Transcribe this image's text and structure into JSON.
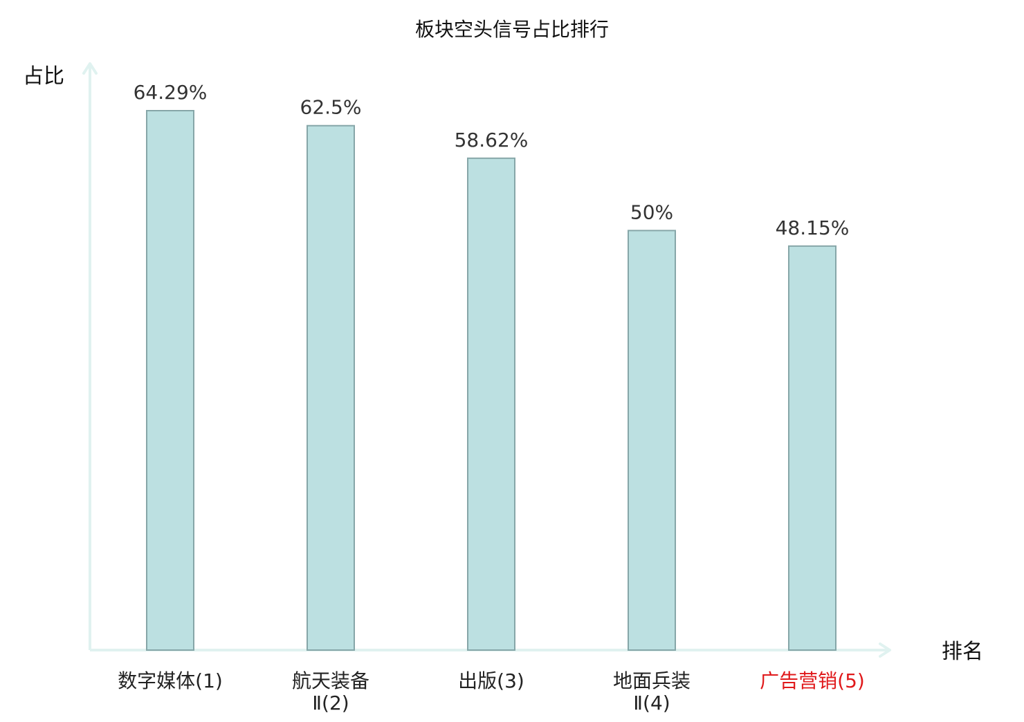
{
  "chart_data": {
    "type": "bar",
    "title": "板块空头信号占比排行",
    "xlabel": "排名",
    "ylabel": "占比",
    "categories": [
      {
        "name_lines": [
          "数字媒体"
        ],
        "rank": "(1)",
        "highlight": false
      },
      {
        "name_lines": [
          "航天装备",
          "Ⅱ"
        ],
        "rank": "(2)",
        "highlight": false
      },
      {
        "name_lines": [
          "出版"
        ],
        "rank": "(3)",
        "highlight": false
      },
      {
        "name_lines": [
          "地面兵装",
          "Ⅱ"
        ],
        "rank": "(4)",
        "highlight": false
      },
      {
        "name_lines": [
          "广告营销"
        ],
        "rank": "(5)",
        "highlight": true
      }
    ],
    "values": [
      64.29,
      62.5,
      58.62,
      50,
      48.15
    ],
    "value_labels": [
      "64.29%",
      "62.5%",
      "58.62%",
      "50%",
      "48.15%"
    ],
    "ylim": [
      0,
      64.29
    ],
    "grid": false,
    "colors": {
      "bar_fill": "#bce0e1",
      "bar_stroke": "#86a6a8",
      "axis": "#e0f2f0",
      "label_text": "#333333",
      "tick_text": "#222222",
      "highlight_text": "#e0191b"
    }
  }
}
